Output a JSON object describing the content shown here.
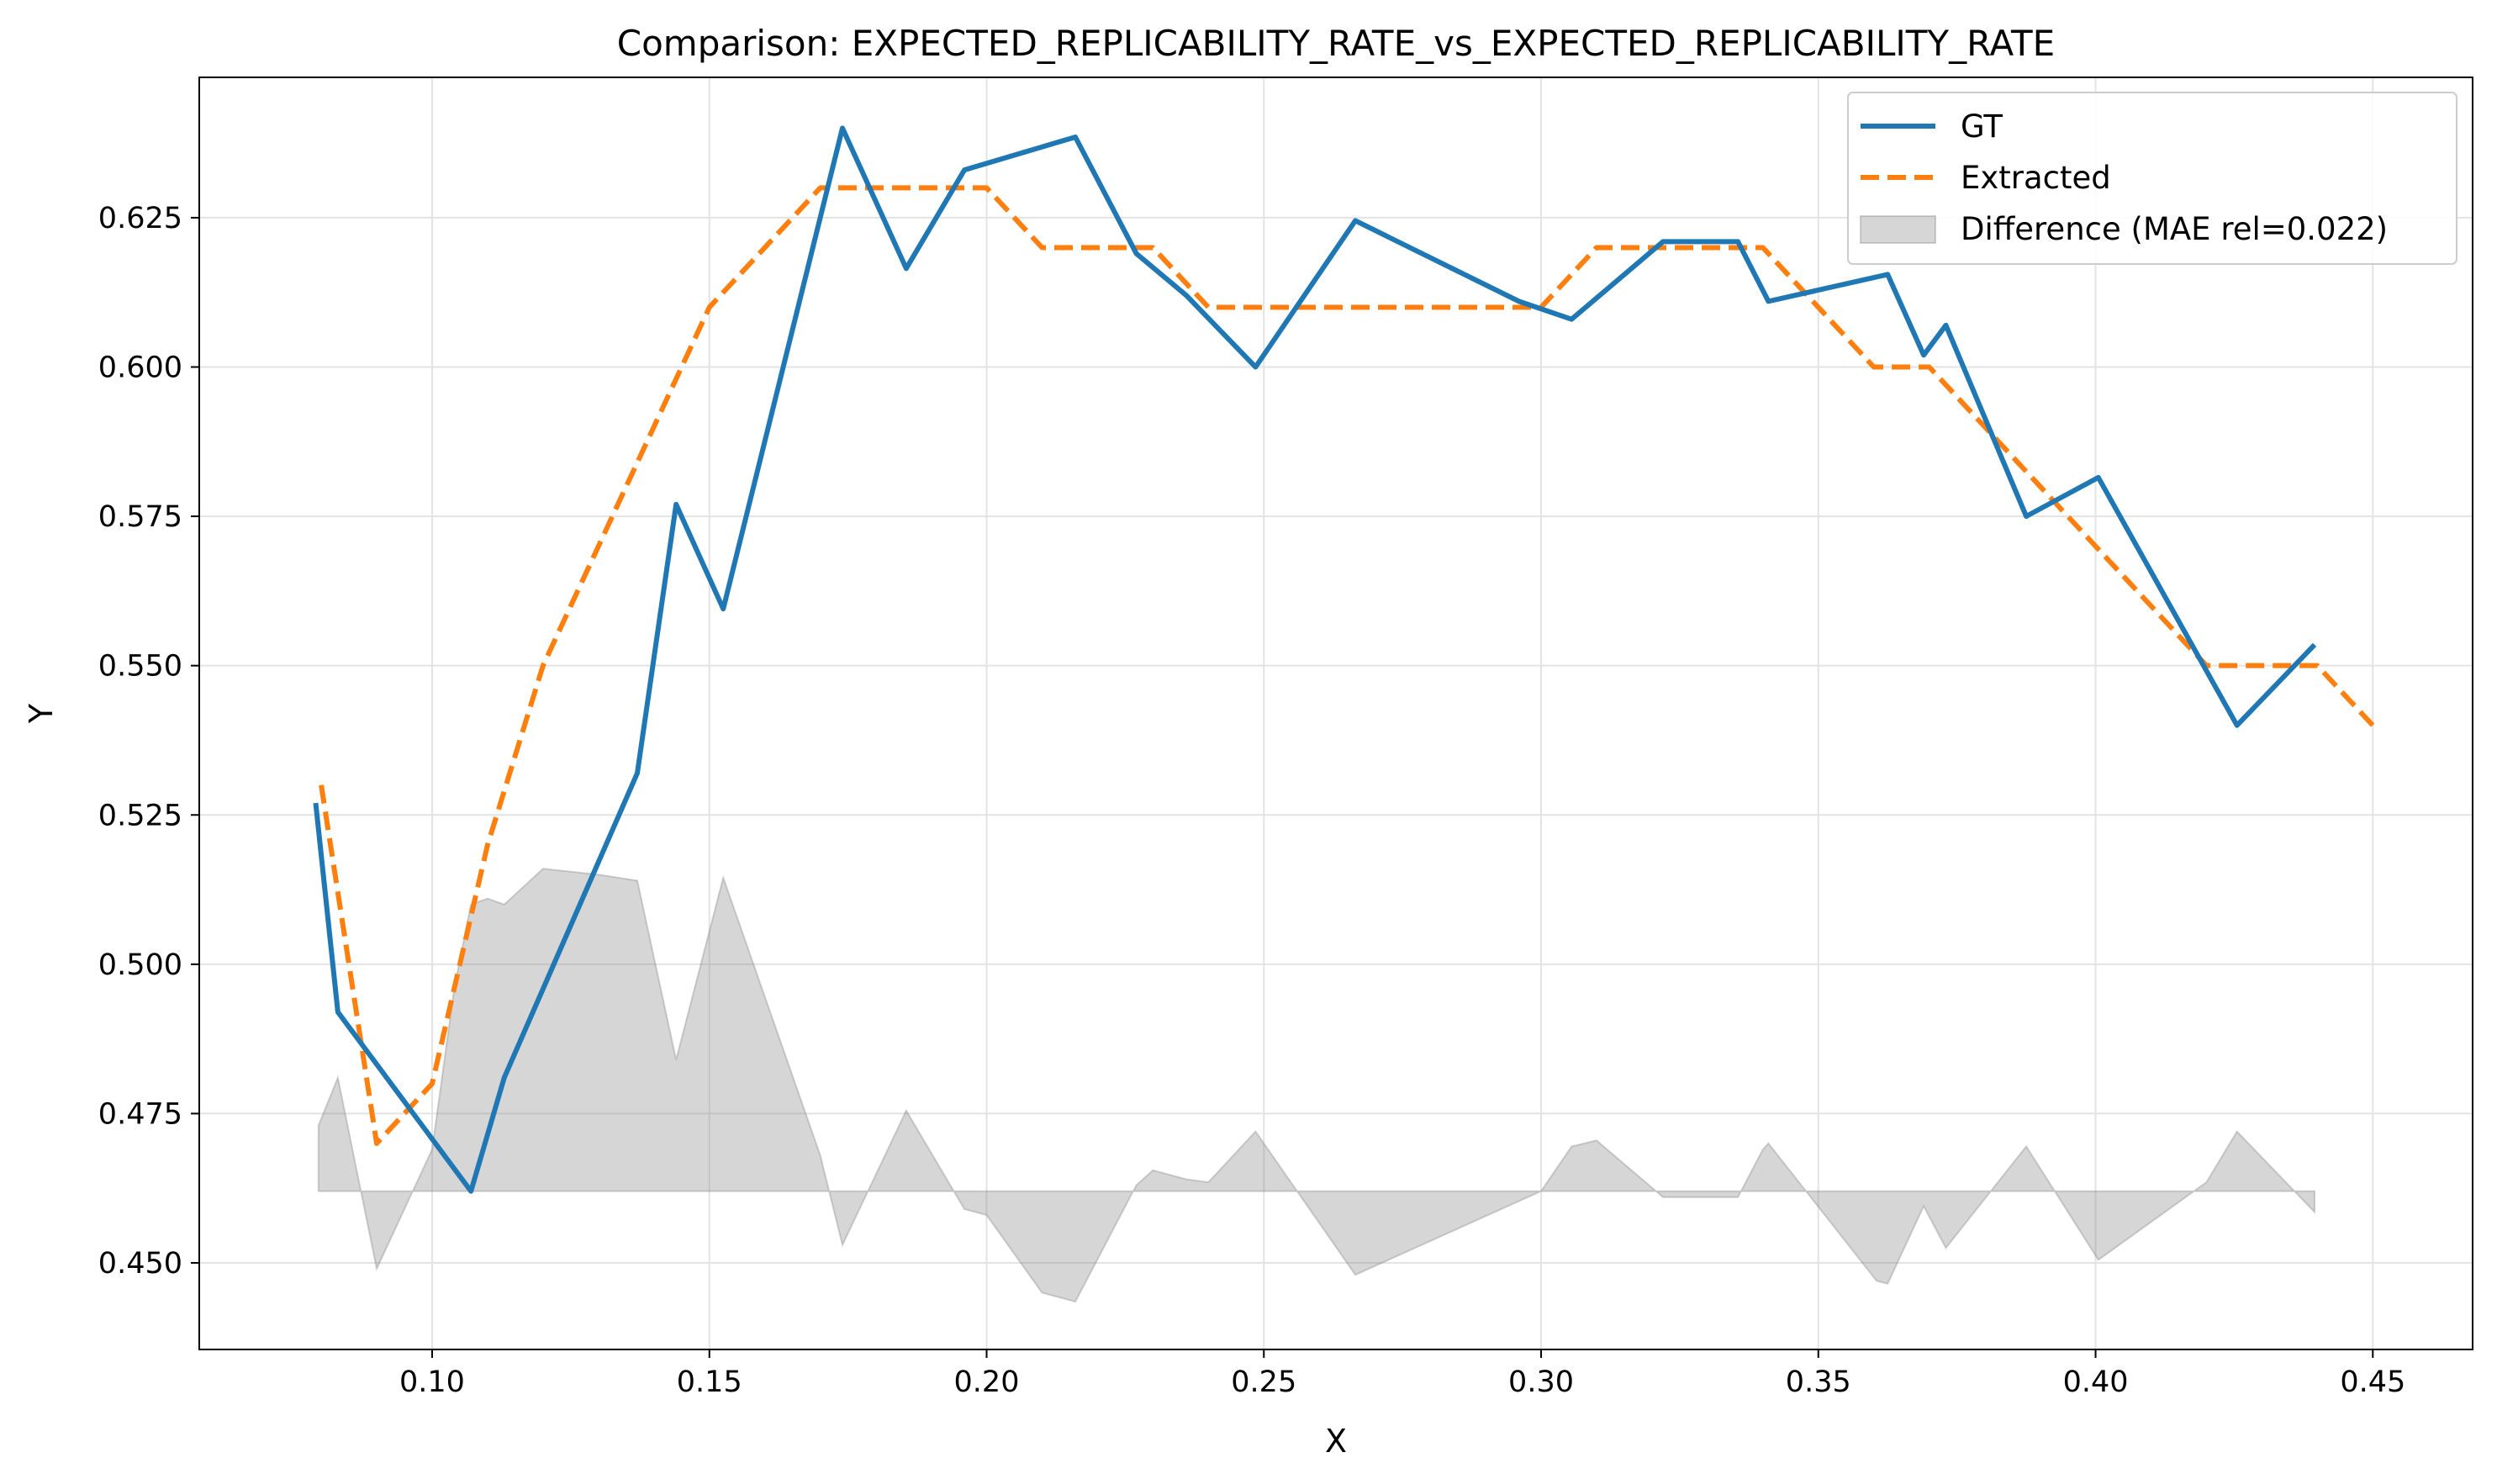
{
  "chart_data": {
    "type": "line",
    "title": "Comparison: EXPECTED_REPLICABILITY_RATE_vs_EXPECTED_REPLICABILITY_RATE",
    "xlabel": "X",
    "ylabel": "Y",
    "xlim": [
      0.058,
      0.468
    ],
    "ylim": [
      0.4355,
      0.6485
    ],
    "x_ticks": [
      0.1,
      0.15,
      0.2,
      0.25,
      0.3,
      0.35,
      0.4,
      0.45
    ],
    "x_tick_labels": [
      "0.10",
      "0.15",
      "0.20",
      "0.25",
      "0.30",
      "0.35",
      "0.40",
      "0.45"
    ],
    "y_ticks": [
      0.45,
      0.475,
      0.5,
      0.525,
      0.55,
      0.575,
      0.6,
      0.625
    ],
    "y_tick_labels": [
      "0.450",
      "0.475",
      "0.500",
      "0.525",
      "0.550",
      "0.575",
      "0.600",
      "0.625"
    ],
    "grid": true,
    "legend_position": "top-right",
    "series": [
      {
        "name": "GT",
        "color": "#1f77b4",
        "style": "solid",
        "points": [
          [
            0.079,
            0.527
          ],
          [
            0.083,
            0.492
          ],
          [
            0.107,
            0.462
          ],
          [
            0.113,
            0.481
          ],
          [
            0.137,
            0.532
          ],
          [
            0.144,
            0.577
          ],
          [
            0.1525,
            0.5595
          ],
          [
            0.174,
            0.64
          ],
          [
            0.1855,
            0.6165
          ],
          [
            0.196,
            0.633
          ],
          [
            0.216,
            0.6385
          ],
          [
            0.227,
            0.619
          ],
          [
            0.236,
            0.612
          ],
          [
            0.2485,
            0.6
          ],
          [
            0.2665,
            0.6245
          ],
          [
            0.296,
            0.611
          ],
          [
            0.3055,
            0.608
          ],
          [
            0.322,
            0.621
          ],
          [
            0.3355,
            0.621
          ],
          [
            0.341,
            0.611
          ],
          [
            0.3625,
            0.6155
          ],
          [
            0.369,
            0.602
          ],
          [
            0.373,
            0.607
          ],
          [
            0.3875,
            0.575
          ],
          [
            0.4005,
            0.5815
          ],
          [
            0.4255,
            0.54
          ],
          [
            0.4395,
            0.5535
          ]
        ]
      },
      {
        "name": "Extracted",
        "color": "#ff7f0e",
        "style": "dashed",
        "points": [
          [
            0.08,
            0.53
          ],
          [
            0.09,
            0.47
          ],
          [
            0.1,
            0.48
          ],
          [
            0.11,
            0.52
          ],
          [
            0.12,
            0.55
          ],
          [
            0.13,
            0.57
          ],
          [
            0.14,
            0.59
          ],
          [
            0.15,
            0.61
          ],
          [
            0.16,
            0.62
          ],
          [
            0.17,
            0.63
          ],
          [
            0.18,
            0.63
          ],
          [
            0.19,
            0.63
          ],
          [
            0.2,
            0.63
          ],
          [
            0.21,
            0.62
          ],
          [
            0.22,
            0.62
          ],
          [
            0.23,
            0.62
          ],
          [
            0.24,
            0.61
          ],
          [
            0.25,
            0.61
          ],
          [
            0.26,
            0.61
          ],
          [
            0.27,
            0.61
          ],
          [
            0.28,
            0.61
          ],
          [
            0.29,
            0.61
          ],
          [
            0.3,
            0.61
          ],
          [
            0.31,
            0.62
          ],
          [
            0.32,
            0.62
          ],
          [
            0.33,
            0.62
          ],
          [
            0.34,
            0.62
          ],
          [
            0.35,
            0.61
          ],
          [
            0.36,
            0.6
          ],
          [
            0.37,
            0.6
          ],
          [
            0.38,
            0.59
          ],
          [
            0.39,
            0.58
          ],
          [
            0.4,
            0.57
          ],
          [
            0.41,
            0.56
          ],
          [
            0.42,
            0.55
          ],
          [
            0.43,
            0.55
          ],
          [
            0.44,
            0.55
          ],
          [
            0.45,
            0.54
          ]
        ]
      },
      {
        "name": "Difference (MAE rel=0.022)",
        "color": "#b3b3b3",
        "style": "filled-area",
        "baseline": 0.462,
        "points": [
          [
            0.0795,
            0.473
          ],
          [
            0.083,
            0.481
          ],
          [
            0.09,
            0.449
          ],
          [
            0.1,
            0.469
          ],
          [
            0.104,
            0.496
          ],
          [
            0.107,
            0.51
          ],
          [
            0.11,
            0.511
          ],
          [
            0.113,
            0.51
          ],
          [
            0.12,
            0.516
          ],
          [
            0.13,
            0.515
          ],
          [
            0.137,
            0.514
          ],
          [
            0.144,
            0.484
          ],
          [
            0.1525,
            0.5145
          ],
          [
            0.17,
            0.468
          ],
          [
            0.174,
            0.453
          ],
          [
            0.1855,
            0.4755
          ],
          [
            0.196,
            0.459
          ],
          [
            0.2,
            0.458
          ],
          [
            0.21,
            0.445
          ],
          [
            0.216,
            0.4435
          ],
          [
            0.227,
            0.463
          ],
          [
            0.23,
            0.4655
          ],
          [
            0.236,
            0.464
          ],
          [
            0.24,
            0.4635
          ],
          [
            0.2485,
            0.472
          ],
          [
            0.2665,
            0.448
          ],
          [
            0.3,
            0.462
          ],
          [
            0.3055,
            0.4695
          ],
          [
            0.31,
            0.4705
          ],
          [
            0.322,
            0.461
          ],
          [
            0.3355,
            0.461
          ],
          [
            0.34,
            0.469
          ],
          [
            0.341,
            0.47
          ],
          [
            0.3605,
            0.447
          ],
          [
            0.3625,
            0.4465
          ],
          [
            0.369,
            0.4595
          ],
          [
            0.373,
            0.4525
          ],
          [
            0.3875,
            0.4695
          ],
          [
            0.4005,
            0.4505
          ],
          [
            0.42,
            0.4635
          ],
          [
            0.4255,
            0.472
          ],
          [
            0.4395,
            0.4585
          ]
        ]
      }
    ]
  }
}
